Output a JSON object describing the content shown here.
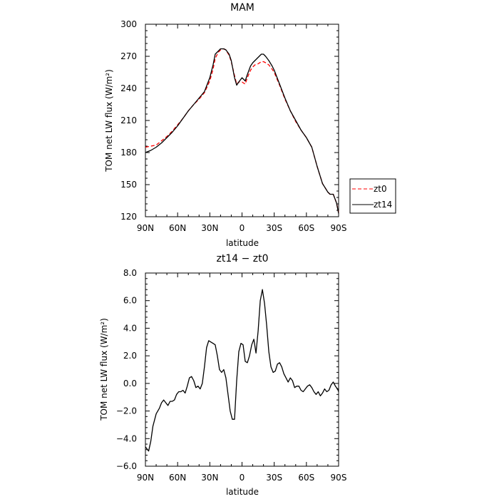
{
  "chart_data": [
    {
      "type": "line",
      "title": "MAM",
      "xlabel": "latitude",
      "ylabel": "TOM net LW flux (W/m²)",
      "xlim": [
        90,
        -90
      ],
      "ylim": [
        120,
        300
      ],
      "xticks": [
        90,
        60,
        30,
        0,
        -30,
        -60,
        -90
      ],
      "xtick_labels": [
        "90N",
        "60N",
        "30N",
        "0",
        "30S",
        "60S",
        "90S"
      ],
      "yticks": [
        120,
        150,
        180,
        210,
        240,
        270,
        300
      ],
      "ytick_labels": [
        "120",
        "150",
        "180",
        "210",
        "240",
        "270",
        "300"
      ],
      "grid": false,
      "legend": "outside-right",
      "series": [
        {
          "name": "zt0",
          "color": "#ff0000",
          "dash": "dashed",
          "x": [
            90,
            85,
            80,
            75,
            70,
            65,
            60,
            55,
            50,
            45,
            40,
            35,
            30,
            27,
            25,
            22,
            20,
            17,
            15,
            12,
            10,
            7,
            5,
            3,
            0,
            -3,
            -5,
            -8,
            -10,
            -12,
            -15,
            -18,
            -20,
            -22,
            -25,
            -28,
            -30,
            -35,
            -40,
            -45,
            -50,
            -55,
            -60,
            -65,
            -70,
            -75,
            -80,
            -82,
            -85,
            -88,
            -90
          ],
          "y": [
            185,
            186,
            187,
            191,
            195,
            200,
            206,
            212,
            219,
            225,
            230,
            236,
            247,
            258,
            268,
            274,
            276,
            277,
            276,
            271,
            265,
            252,
            244,
            246,
            246,
            244,
            250,
            257,
            260,
            262,
            263,
            265,
            265,
            264,
            262,
            258,
            255,
            243,
            230,
            219,
            209,
            201,
            194,
            185,
            167,
            151,
            143,
            141,
            141,
            133,
            124
          ]
        },
        {
          "name": "zt14",
          "color": "#000000",
          "dash": "solid",
          "x": [
            90,
            85,
            80,
            75,
            70,
            65,
            60,
            55,
            50,
            45,
            40,
            35,
            30,
            27,
            25,
            22,
            20,
            17,
            15,
            12,
            10,
            7,
            5,
            3,
            0,
            -3,
            -5,
            -8,
            -10,
            -12,
            -15,
            -18,
            -20,
            -22,
            -25,
            -28,
            -30,
            -35,
            -40,
            -45,
            -50,
            -55,
            -60,
            -65,
            -70,
            -75,
            -80,
            -82,
            -85,
            -88,
            -90
          ],
          "y": [
            180,
            182,
            185,
            189,
            194,
            199,
            205,
            212,
            219,
            225,
            231,
            237,
            250,
            262,
            272,
            275,
            277,
            277,
            276,
            272,
            266,
            250,
            243,
            246,
            250,
            247,
            253,
            261,
            264,
            266,
            269,
            272,
            272,
            270,
            266,
            261,
            257,
            244,
            231,
            219,
            210,
            201,
            194,
            185,
            167,
            151,
            143,
            141,
            141,
            133,
            123
          ]
        }
      ]
    },
    {
      "type": "line",
      "title": "zt14 − zt0",
      "xlabel": "latitude",
      "ylabel": "TOM net LW flux (W/m²)",
      "xlim": [
        90,
        -90
      ],
      "ylim": [
        -6,
        8
      ],
      "xticks": [
        90,
        60,
        30,
        0,
        -30,
        -60,
        -90
      ],
      "xtick_labels": [
        "90N",
        "60N",
        "30N",
        "0",
        "30S",
        "60S",
        "90S"
      ],
      "yticks": [
        -6,
        -4,
        -2,
        0,
        2,
        4,
        6,
        8
      ],
      "ytick_labels": [
        "−6.0",
        "−4.0",
        "−2.0",
        "0.0",
        "2.0",
        "4.0",
        "6.0",
        "8.0"
      ],
      "grid": false,
      "series": [
        {
          "color": "#000000",
          "dash": "solid",
          "x": [
            90,
            88,
            87,
            85,
            83,
            80,
            77,
            75,
            73,
            71,
            69,
            67,
            65,
            63,
            61,
            59,
            57,
            55,
            53,
            51,
            49,
            47,
            45,
            43,
            41,
            39,
            37,
            35,
            33,
            31,
            29,
            27,
            25,
            23,
            21,
            19,
            17,
            15,
            13,
            11,
            9,
            7,
            5,
            3,
            1,
            -1,
            -3,
            -5,
            -7,
            -9,
            -11,
            -13,
            -15,
            -17,
            -19,
            -21,
            -23,
            -25,
            -27,
            -29,
            -31,
            -33,
            -35,
            -37,
            -39,
            -41,
            -43,
            -45,
            -47,
            -49,
            -51,
            -53,
            -55,
            -57,
            -59,
            -61,
            -63,
            -65,
            -67,
            -69,
            -71,
            -73,
            -75,
            -77,
            -79,
            -81,
            -83,
            -85,
            -87,
            -89,
            -90
          ],
          "y": [
            -4.6,
            -4.8,
            -4.9,
            -4.2,
            -3.1,
            -2.2,
            -1.8,
            -1.4,
            -1.2,
            -1.4,
            -1.6,
            -1.3,
            -1.3,
            -1.2,
            -0.8,
            -0.6,
            -0.6,
            -0.5,
            -0.7,
            -0.2,
            0.4,
            0.5,
            0.2,
            -0.3,
            -0.2,
            -0.4,
            0.0,
            1.2,
            2.6,
            3.1,
            3.0,
            2.9,
            2.8,
            2.0,
            1.0,
            0.8,
            1.0,
            0.4,
            -0.8,
            -2.0,
            -2.6,
            -2.6,
            0.2,
            2.3,
            2.9,
            2.8,
            1.6,
            1.5,
            2.0,
            2.8,
            3.2,
            2.2,
            3.8,
            6.0,
            6.8,
            5.8,
            4.2,
            2.3,
            1.2,
            0.8,
            0.9,
            1.4,
            1.5,
            1.2,
            0.7,
            0.4,
            0.1,
            0.4,
            0.2,
            -0.3,
            -0.2,
            -0.2,
            -0.5,
            -0.6,
            -0.4,
            -0.2,
            -0.1,
            -0.3,
            -0.6,
            -0.8,
            -0.6,
            -0.9,
            -0.7,
            -0.4,
            -0.6,
            -0.5,
            -0.1,
            0.1,
            -0.2,
            -0.4,
            -0.6
          ]
        }
      ]
    }
  ]
}
